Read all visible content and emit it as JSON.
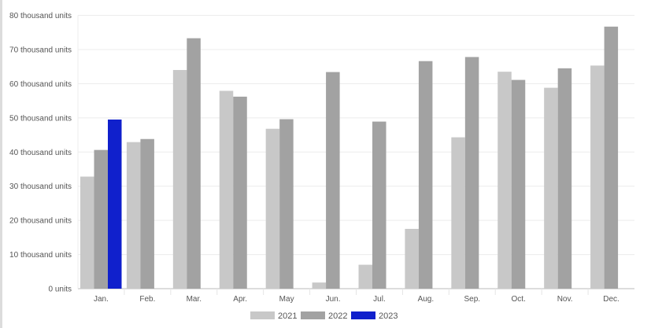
{
  "chart_data": {
    "type": "bar",
    "title": "",
    "xlabel": "",
    "ylabel": "",
    "categories": [
      "Jan.",
      "Feb.",
      "Mar.",
      "Apr.",
      "May",
      "Jun.",
      "Jul.",
      "Aug.",
      "Sep.",
      "Oct.",
      "Nov.",
      "Dec."
    ],
    "ylim": [
      0,
      80
    ],
    "yticks": [
      0,
      10,
      20,
      30,
      40,
      50,
      60,
      70,
      80
    ],
    "ytick_labels": [
      "0 units",
      "10 thousand units",
      "20 thousand units",
      "30 thousand units",
      "40 thousand units",
      "50 thousand units",
      "60 thousand units",
      "70 thousand units",
      "80 thousand units"
    ],
    "grid": true,
    "legend_position": "bottom",
    "series": [
      {
        "name": "2021",
        "color": "#c8c8c8",
        "values": [
          32.8,
          42.9,
          64.0,
          57.9,
          46.8,
          1.8,
          7.0,
          17.5,
          44.3,
          63.5,
          58.8,
          65.3
        ]
      },
      {
        "name": "2022",
        "color": "#a2a2a2",
        "values": [
          40.6,
          43.8,
          73.3,
          56.2,
          49.6,
          63.4,
          48.9,
          66.6,
          67.8,
          61.1,
          64.5,
          76.7
        ]
      },
      {
        "name": "2023",
        "color": "#1020cc",
        "values": [
          49.5,
          null,
          null,
          null,
          null,
          null,
          null,
          null,
          null,
          null,
          null,
          null
        ]
      }
    ]
  }
}
